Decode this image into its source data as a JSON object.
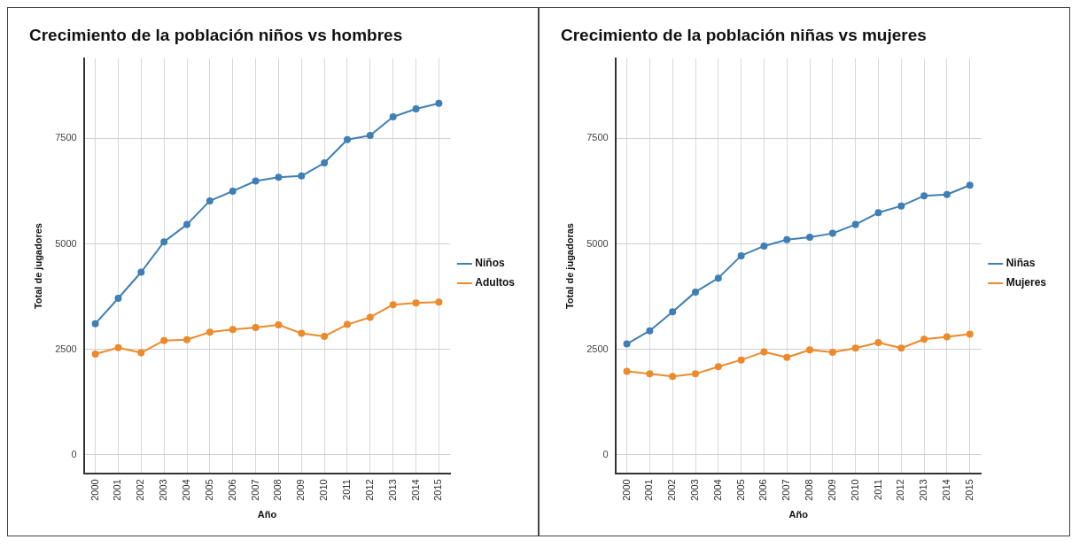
{
  "chart_data": [
    {
      "type": "line",
      "title": "Crecimiento de la población niños vs hombres",
      "xlabel": "Año",
      "ylabel": "Total de jugadores",
      "categories": [
        "2000",
        "2001",
        "2002",
        "2003",
        "2004",
        "2005",
        "2006",
        "2007",
        "2008",
        "2009",
        "2010",
        "2011",
        "2012",
        "2013",
        "2014",
        "2015"
      ],
      "series": [
        {
          "name": "Niños",
          "color": "#3f7fb5",
          "values": [
            3110,
            3710,
            4330,
            5050,
            5460,
            6020,
            6250,
            6490,
            6580,
            6610,
            6920,
            7470,
            7570,
            8010,
            8200,
            8330
          ]
        },
        {
          "name": "Adultos",
          "color": "#ec8a2c",
          "values": [
            2390,
            2540,
            2420,
            2710,
            2730,
            2910,
            2970,
            3020,
            3080,
            2880,
            2810,
            3090,
            3260,
            3560,
            3600,
            3620
          ]
        }
      ],
      "ylim": [
        -450,
        9400
      ],
      "yticks": [
        0,
        2500,
        5000,
        7500
      ],
      "grid": true,
      "legend": "right",
      "marker": "circle",
      "line_style": "solid"
    },
    {
      "type": "line",
      "title": "Crecimiento de la población niñas vs mujeres",
      "xlabel": "Año",
      "ylabel": "Total de jugadoras",
      "categories": [
        "2000",
        "2001",
        "2002",
        "2003",
        "2004",
        "2005",
        "2006",
        "2007",
        "2008",
        "2009",
        "2010",
        "2011",
        "2012",
        "2013",
        "2014",
        "2015"
      ],
      "series": [
        {
          "name": "Niñas",
          "color": "#3f7fb5",
          "values": [
            2630,
            2940,
            3390,
            3860,
            4190,
            4720,
            4950,
            5100,
            5160,
            5250,
            5460,
            5740,
            5900,
            6140,
            6170,
            6390
          ]
        },
        {
          "name": "Mujeres",
          "color": "#ec8a2c",
          "values": [
            1980,
            1920,
            1860,
            1920,
            2090,
            2250,
            2440,
            2310,
            2490,
            2430,
            2530,
            2660,
            2530,
            2740,
            2800,
            2860
          ]
        }
      ],
      "ylim": [
        -450,
        9400
      ],
      "yticks": [
        0,
        2500,
        5000,
        7500
      ],
      "grid": true,
      "legend": "right",
      "marker": "circle",
      "line_style": "solid"
    }
  ]
}
